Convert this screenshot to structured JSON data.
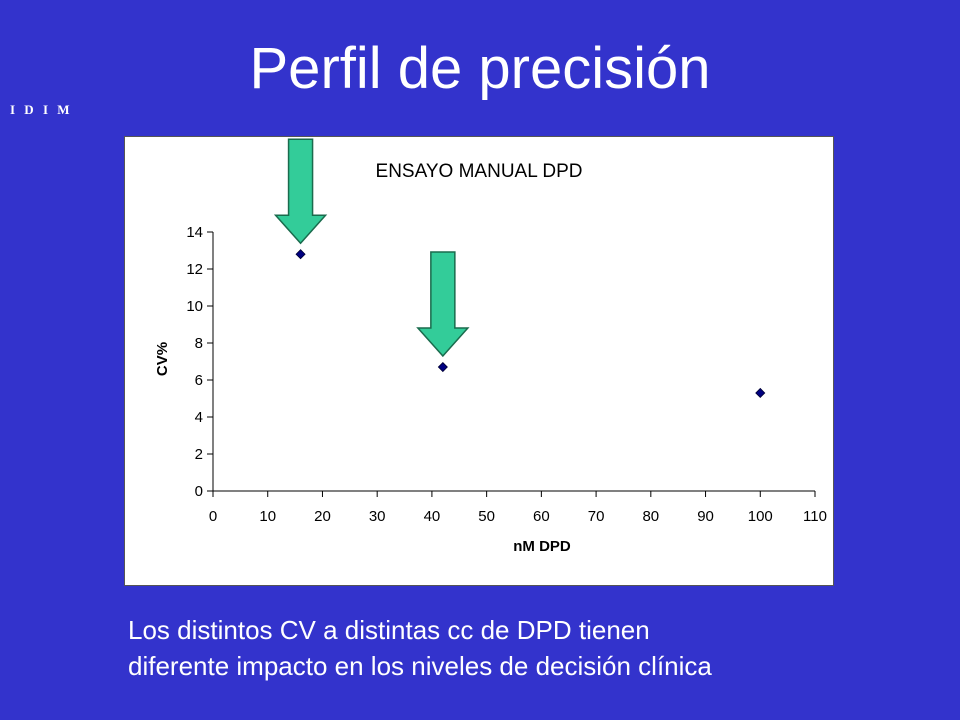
{
  "slide": {
    "title": "Perfil de precisión",
    "logo_text": "I D I M",
    "caption_line1": "Los distintos CV a distintas cc de DPD tienen",
    "caption_line2": "diferente impacto en los niveles de decisión clínica"
  },
  "colors": {
    "background": "#3333cc",
    "marker": "#000080",
    "arrow_fill": "#33cc99",
    "arrow_stroke": "#1a6b4d"
  },
  "chart_data": {
    "type": "scatter",
    "title": "ENSAYO MANUAL DPD",
    "xlabel": "nM DPD",
    "ylabel": "CV%",
    "xlim": [
      0,
      110
    ],
    "ylim": [
      0,
      14
    ],
    "xticks": [
      0,
      10,
      20,
      30,
      40,
      50,
      60,
      70,
      80,
      90,
      100,
      110
    ],
    "yticks": [
      0,
      2,
      4,
      6,
      8,
      10,
      12,
      14
    ],
    "grid": false,
    "legend": "none",
    "points": [
      {
        "x": 16,
        "y": 12.8
      },
      {
        "x": 42,
        "y": 6.7
      },
      {
        "x": 100,
        "y": 5.3
      }
    ],
    "annotations": [
      {
        "type": "down-arrow",
        "target_point": 0
      },
      {
        "type": "down-arrow",
        "target_point": 1
      }
    ]
  }
}
